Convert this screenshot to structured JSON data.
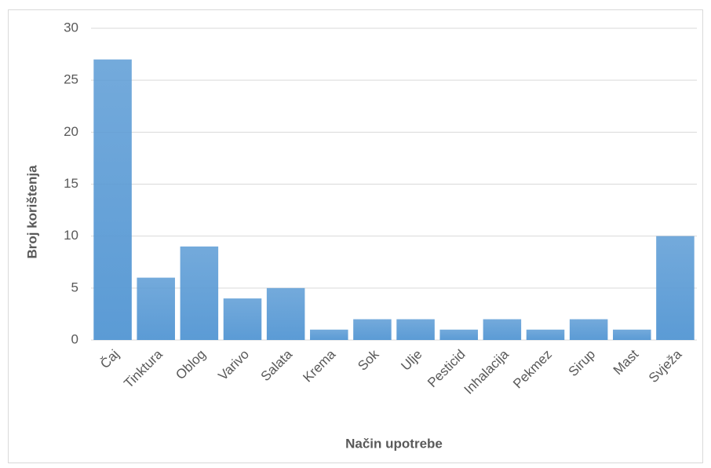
{
  "chart_data": {
    "type": "bar",
    "x_label": "Način upotrebe",
    "y_label": "Broj korištenja",
    "categories": [
      "Čaj",
      "Tinktura",
      "Oblog",
      "Varivo",
      "Salata",
      "Krema",
      "Sok",
      "Ulje",
      "Pesticid",
      "Inhalacija",
      "Pekmez",
      "Sirup",
      "Mast",
      "Svježa"
    ],
    "values": [
      27,
      6,
      9,
      4,
      5,
      1,
      2,
      2,
      1,
      2,
      1,
      2,
      1,
      10
    ],
    "color": "#5b9bd5",
    "ylim": [
      0,
      30
    ],
    "yticks": [
      0,
      5,
      10,
      15,
      20,
      25,
      30
    ],
    "grid": true
  }
}
